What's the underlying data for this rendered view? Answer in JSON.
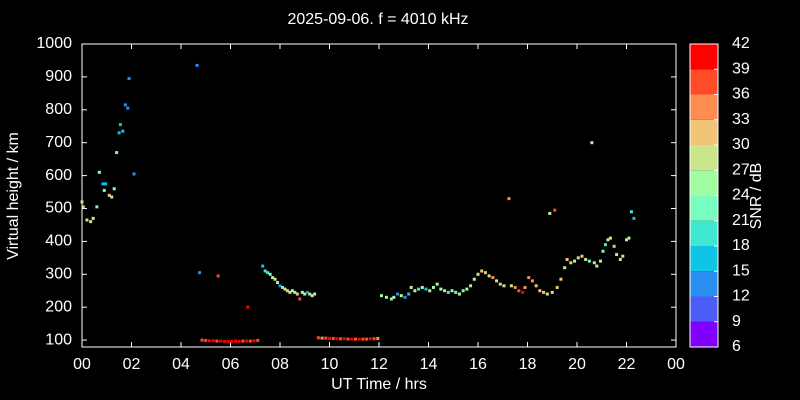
{
  "chart_data": {
    "type": "scatter",
    "title": "2025-09-06. f = 4010 kHz",
    "xlabel": "UT Time / hrs",
    "ylabel": "Virtual height / km",
    "xlim": [
      0,
      24
    ],
    "xticks": [
      {
        "value": 0,
        "label": "00"
      },
      {
        "value": 2,
        "label": "02"
      },
      {
        "value": 4,
        "label": "04"
      },
      {
        "value": 6,
        "label": "06"
      },
      {
        "value": 8,
        "label": "08"
      },
      10,
      12,
      14,
      16,
      18,
      20,
      22,
      {
        "value": 24,
        "label": "00"
      }
    ],
    "ylim": [
      79,
      1000
    ],
    "yticks": [
      100,
      200,
      300,
      400,
      500,
      600,
      700,
      800,
      900,
      1000
    ],
    "x": [
      0.0,
      0.05,
      0.2,
      0.35,
      0.45,
      0.6,
      0.7,
      0.85,
      0.95,
      0.9,
      1.1,
      1.2,
      1.3,
      1.4,
      1.5,
      1.55,
      1.65,
      1.75,
      1.85,
      1.9,
      2.1,
      4.65,
      4.75,
      5.5,
      6.7,
      4.85,
      5.0,
      5.15,
      5.3,
      5.45,
      5.6,
      5.75,
      5.9,
      6.05,
      6.2,
      6.35,
      6.5,
      6.65,
      6.8,
      6.95,
      7.1,
      7.3,
      7.4,
      7.5,
      7.6,
      7.7,
      7.8,
      7.9,
      8.0,
      8.1,
      8.2,
      8.3,
      8.4,
      8.5,
      8.6,
      8.7,
      8.8,
      8.9,
      9.0,
      9.1,
      9.2,
      9.3,
      9.4,
      9.55,
      9.7,
      9.85,
      10.0,
      10.15,
      10.3,
      10.45,
      10.6,
      10.75,
      10.9,
      11.05,
      11.2,
      11.35,
      11.5,
      11.65,
      11.8,
      11.95,
      12.1,
      12.3,
      12.5,
      12.6,
      12.75,
      12.9,
      13.05,
      13.2,
      13.3,
      13.45,
      13.6,
      13.75,
      13.9,
      14.05,
      14.2,
      14.35,
      14.5,
      14.65,
      14.8,
      14.95,
      15.1,
      15.25,
      15.4,
      15.55,
      15.7,
      15.85,
      16.0,
      16.15,
      16.3,
      16.45,
      16.6,
      16.75,
      16.9,
      17.05,
      17.25,
      17.35,
      17.5,
      17.65,
      17.8,
      17.9,
      18.05,
      18.2,
      18.35,
      18.5,
      18.65,
      18.8,
      18.9,
      19.0,
      19.1,
      19.2,
      19.35,
      19.5,
      19.6,
      19.75,
      19.9,
      20.05,
      20.2,
      20.35,
      20.5,
      20.6,
      20.7,
      20.8,
      20.95,
      21.05,
      21.15,
      21.25,
      21.35,
      21.5,
      21.6,
      21.75,
      21.85,
      22.0,
      22.1,
      22.2,
      22.3
    ],
    "y": [
      520,
      505,
      465,
      460,
      470,
      505,
      610,
      575,
      575,
      555,
      540,
      535,
      560,
      670,
      730,
      755,
      735,
      815,
      805,
      895,
      605,
      935,
      305,
      295,
      200,
      100,
      99,
      98,
      98,
      97,
      97,
      96,
      95,
      96,
      97,
      96,
      97,
      97,
      97,
      98,
      99,
      325,
      310,
      305,
      300,
      290,
      285,
      275,
      265,
      260,
      255,
      250,
      245,
      250,
      245,
      240,
      225,
      245,
      240,
      245,
      240,
      235,
      240,
      107,
      106,
      106,
      105,
      105,
      104,
      104,
      104,
      103,
      103,
      103,
      103,
      103,
      103,
      104,
      104,
      105,
      235,
      230,
      225,
      230,
      240,
      235,
      230,
      240,
      260,
      250,
      255,
      260,
      255,
      250,
      260,
      270,
      255,
      250,
      245,
      250,
      245,
      240,
      250,
      255,
      265,
      285,
      300,
      310,
      305,
      295,
      290,
      280,
      270,
      265,
      530,
      265,
      260,
      250,
      245,
      260,
      290,
      280,
      265,
      250,
      245,
      240,
      485,
      245,
      495,
      260,
      285,
      320,
      345,
      335,
      340,
      350,
      355,
      345,
      340,
      700,
      335,
      325,
      340,
      370,
      390,
      405,
      410,
      385,
      360,
      345,
      355,
      405,
      410,
      490,
      470
    ],
    "snr": [
      27,
      27,
      27,
      27,
      27,
      21,
      24,
      15,
      15,
      21,
      30,
      27,
      24,
      21,
      15,
      15,
      15,
      12,
      12,
      12,
      12,
      12,
      12,
      36,
      39,
      36,
      36,
      39,
      39,
      36,
      39,
      39,
      39,
      39,
      42,
      39,
      36,
      39,
      36,
      39,
      36,
      15,
      18,
      18,
      21,
      27,
      27,
      27,
      12,
      21,
      27,
      30,
      27,
      24,
      27,
      30,
      36,
      24,
      24,
      12,
      27,
      24,
      27,
      36,
      33,
      36,
      39,
      36,
      39,
      36,
      39,
      36,
      39,
      36,
      39,
      36,
      36,
      39,
      36,
      33,
      24,
      24,
      21,
      24,
      12,
      24,
      12,
      15,
      27,
      24,
      18,
      24,
      15,
      27,
      24,
      24,
      24,
      27,
      18,
      24,
      21,
      27,
      21,
      24,
      27,
      24,
      27,
      30,
      30,
      27,
      33,
      27,
      30,
      27,
      33,
      27,
      33,
      36,
      39,
      33,
      33,
      33,
      30,
      30,
      30,
      27,
      27,
      27,
      36,
      30,
      30,
      27,
      30,
      27,
      27,
      27,
      30,
      27,
      21,
      24,
      24,
      27,
      27,
      21,
      18,
      27,
      27,
      30,
      27,
      27,
      27,
      27,
      24,
      18,
      15
    ],
    "colorbar": {
      "label": "SNR / dB",
      "lim": [
        6,
        42
      ],
      "ticks": [
        6,
        9,
        12,
        15,
        18,
        21,
        24,
        27,
        30,
        33,
        36,
        39,
        42
      ],
      "colors": [
        "#8000ff",
        "#4c5cf6",
        "#2a8ef0",
        "#10c4e6",
        "#40e8d2",
        "#78fcc0",
        "#a2fca2",
        "#cae68a",
        "#f2c478",
        "#ff8c50",
        "#ff4c28",
        "#ff0000"
      ]
    }
  }
}
